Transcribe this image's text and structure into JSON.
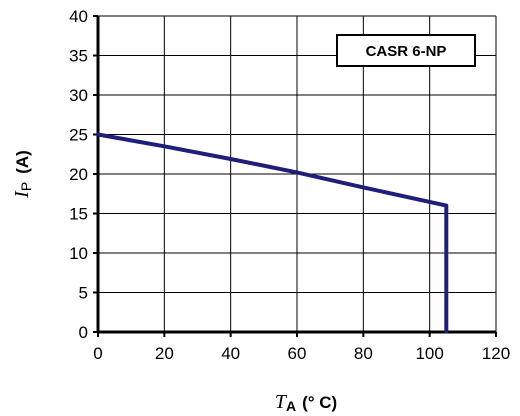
{
  "chart_data": {
    "type": "line",
    "title": "",
    "annotation": "CASR 6-NP",
    "xlabel": {
      "symbol": "T",
      "subscript": "A",
      "unit": "(° C)"
    },
    "ylabel": {
      "symbol": "I",
      "subscript": "P",
      "unit": "(A)"
    },
    "xlim": [
      0,
      120
    ],
    "ylim": [
      0,
      40
    ],
    "xticks": [
      0,
      20,
      40,
      60,
      80,
      100,
      120
    ],
    "yticks": [
      0,
      5,
      10,
      15,
      20,
      25,
      30,
      35,
      40
    ],
    "grid": true,
    "series": [
      {
        "color": "#1f1f7a",
        "x": [
          0,
          20,
          40,
          60,
          80,
          105,
          105
        ],
        "y": [
          25,
          23.5,
          21.9,
          20.2,
          18.3,
          16,
          0
        ]
      }
    ]
  }
}
